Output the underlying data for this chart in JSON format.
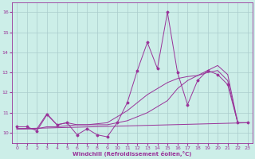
{
  "xlabel": "Windchill (Refroidissement éolien,°C)",
  "background_color": "#cceee8",
  "grid_color": "#aacccc",
  "line_color": "#993399",
  "xlim": [
    -0.5,
    23.5
  ],
  "ylim": [
    9.5,
    16.5
  ],
  "yticks": [
    10,
    11,
    12,
    13,
    14,
    15,
    16
  ],
  "xticks": [
    0,
    1,
    2,
    3,
    4,
    5,
    6,
    7,
    8,
    9,
    10,
    11,
    12,
    13,
    14,
    15,
    16,
    17,
    18,
    19,
    20,
    21,
    22,
    23
  ],
  "line1_x": [
    0,
    1,
    2,
    3,
    4,
    5,
    6,
    7,
    8,
    9,
    10,
    11,
    12,
    13,
    14,
    15,
    16,
    17,
    18,
    19,
    20,
    21,
    22,
    23
  ],
  "line1_y": [
    10.3,
    10.3,
    10.1,
    10.9,
    10.4,
    10.5,
    9.9,
    10.2,
    9.9,
    9.8,
    10.5,
    11.5,
    13.1,
    14.5,
    13.2,
    16.0,
    13.0,
    11.4,
    12.6,
    13.1,
    12.9,
    12.4,
    10.5,
    10.5
  ],
  "line2_x": [
    0,
    1,
    2,
    3,
    4,
    5,
    6,
    7,
    8,
    9,
    10,
    11,
    12,
    13,
    14,
    15,
    16,
    17,
    18,
    19,
    20,
    21,
    22,
    23
  ],
  "line2_y": [
    10.2,
    10.2,
    10.2,
    10.3,
    10.3,
    10.35,
    10.4,
    10.4,
    10.45,
    10.5,
    10.8,
    11.1,
    11.5,
    11.9,
    12.2,
    12.5,
    12.7,
    12.8,
    12.85,
    13.0,
    13.1,
    12.6,
    10.5,
    10.5
  ],
  "line3_x": [
    0,
    1,
    2,
    3,
    4,
    5,
    6,
    7,
    8,
    9,
    10,
    11,
    12,
    13,
    14,
    15,
    16,
    17,
    18,
    19,
    20,
    21,
    22,
    23
  ],
  "line3_y": [
    10.2,
    10.2,
    10.2,
    10.95,
    10.4,
    10.5,
    10.4,
    10.4,
    10.4,
    10.4,
    10.5,
    10.6,
    10.8,
    11.0,
    11.3,
    11.6,
    12.2,
    12.6,
    12.85,
    13.1,
    13.35,
    12.9,
    10.5,
    10.5
  ],
  "line4_x": [
    0,
    23
  ],
  "line4_y": [
    10.2,
    10.5
  ]
}
